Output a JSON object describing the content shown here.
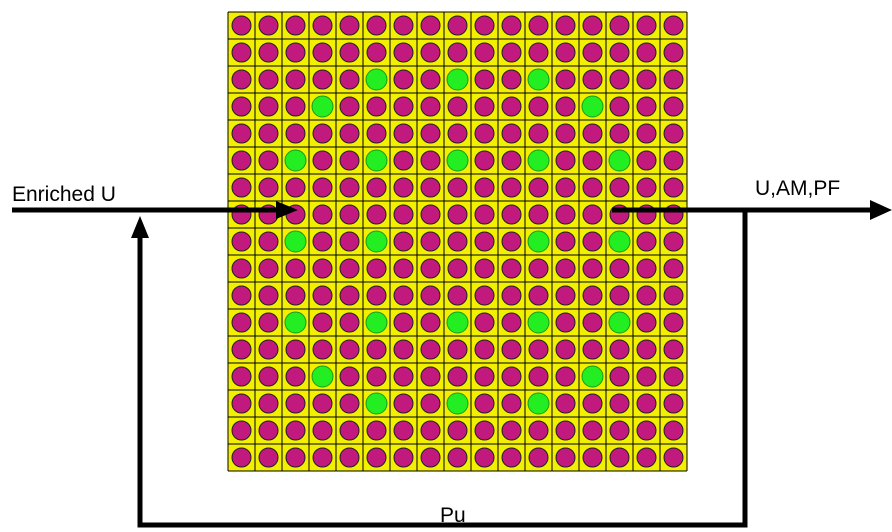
{
  "labels": {
    "input": "Enriched U",
    "output": "U,AM,PF",
    "recycle": "Pu"
  },
  "assembly": {
    "rows": 17,
    "cols": 17,
    "green_cells": [
      [
        2,
        5
      ],
      [
        2,
        8
      ],
      [
        2,
        11
      ],
      [
        3,
        3
      ],
      [
        3,
        13
      ],
      [
        5,
        2
      ],
      [
        5,
        5
      ],
      [
        5,
        8
      ],
      [
        5,
        11
      ],
      [
        5,
        14
      ],
      [
        8,
        2
      ],
      [
        8,
        5
      ],
      [
        8,
        11
      ],
      [
        8,
        14
      ],
      [
        11,
        2
      ],
      [
        11,
        5
      ],
      [
        11,
        8
      ],
      [
        11,
        11
      ],
      [
        11,
        14
      ],
      [
        13,
        3
      ],
      [
        13,
        13
      ],
      [
        14,
        5
      ],
      [
        14,
        8
      ],
      [
        14,
        11
      ]
    ]
  },
  "colors": {
    "cell_background": "#f2f000",
    "fuel_rod": "#c2197e",
    "green_rod": "#22ee22",
    "line": "#000000"
  }
}
